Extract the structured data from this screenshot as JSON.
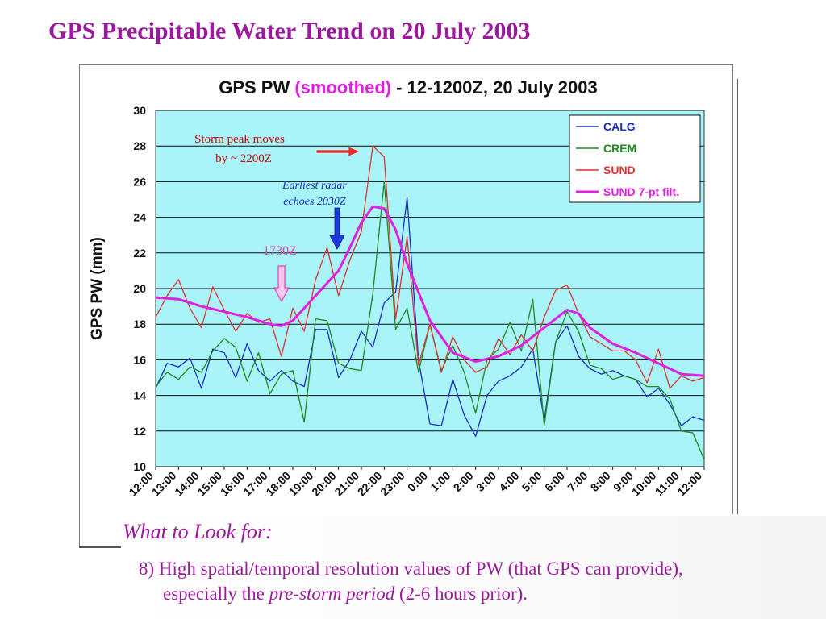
{
  "slide": {
    "title": "GPS Precipitable Water Trend on 20 July 2003",
    "look_for_label": "What to Look for:",
    "point_line1": "8) High spatial/temporal resolution values of PW (that GPS can provide),",
    "point_line2_pre": "especially the ",
    "point_line2_em": "pre-storm period",
    "point_line2_post": " (2-6 hours prior)."
  },
  "colors": {
    "title": "#9b1a9b",
    "plot_bg": "#a8f4f8",
    "CALG": "#1a2fc0",
    "CREM": "#1f8a1f",
    "SUND": "#e03030",
    "SUND_filt": "#e020e0",
    "storm_arrow": "#e03030",
    "radar_arrow": "#1a3ae0",
    "arrow_1730": "#e040c0"
  },
  "chart_data": {
    "type": "line",
    "title_parts": [
      "GPS PW ",
      "(smoothed)",
      " - 12-1200Z, 20 July 2003"
    ],
    "ylabel": "GPS PW (mm)",
    "xlabel": "",
    "ylim": [
      10,
      30
    ],
    "yticks": [
      10,
      12,
      14,
      16,
      18,
      20,
      22,
      24,
      26,
      28,
      30
    ],
    "xtick_labels": [
      "12:00",
      "13:00",
      "14:00",
      "15:00",
      "16:00",
      "17:00",
      "18:00",
      "19:00",
      "20:00",
      "21:00",
      "22:00",
      "23:00",
      "0:00",
      "1:00",
      "2:00",
      "3:00",
      "4:00",
      "5:00",
      "6:00",
      "7:00",
      "8:00",
      "9:00",
      "10:00",
      "11:00",
      "12:00"
    ],
    "x_range": [
      0,
      24
    ],
    "grid": "horizontal",
    "legend_position": "top-right",
    "series": [
      {
        "name": "CALG",
        "color_key": "CALG",
        "width": 1.3,
        "points": [
          [
            0,
            14.4
          ],
          [
            0.5,
            15.8
          ],
          [
            1,
            15.6
          ],
          [
            1.5,
            16.1
          ],
          [
            2,
            14.4
          ],
          [
            2.5,
            16.6
          ],
          [
            3,
            16.4
          ],
          [
            3.5,
            15.0
          ],
          [
            4,
            16.9
          ],
          [
            4.5,
            15.4
          ],
          [
            5,
            14.8
          ],
          [
            5.5,
            15.4
          ],
          [
            6,
            14.8
          ],
          [
            6.5,
            14.5
          ],
          [
            7,
            17.7
          ],
          [
            7.5,
            17.7
          ],
          [
            8,
            15.0
          ],
          [
            8.5,
            16.0
          ],
          [
            9,
            17.6
          ],
          [
            9.5,
            16.7
          ],
          [
            10,
            19.2
          ],
          [
            10.5,
            19.8
          ],
          [
            11,
            25.1
          ],
          [
            11.5,
            16.0
          ],
          [
            12,
            12.4
          ],
          [
            12.5,
            12.3
          ],
          [
            13,
            14.9
          ],
          [
            13.5,
            12.9
          ],
          [
            14,
            11.7
          ],
          [
            14.5,
            14.0
          ],
          [
            15,
            14.8
          ],
          [
            15.5,
            15.1
          ],
          [
            16,
            15.6
          ],
          [
            16.5,
            16.6
          ],
          [
            17,
            12.6
          ],
          [
            17.5,
            17.0
          ],
          [
            18,
            17.9
          ],
          [
            18.5,
            16.2
          ],
          [
            19,
            15.5
          ],
          [
            19.5,
            15.2
          ],
          [
            20,
            15.4
          ],
          [
            20.5,
            15.1
          ],
          [
            21,
            14.9
          ],
          [
            21.5,
            13.9
          ],
          [
            22,
            14.4
          ],
          [
            22.5,
            13.5
          ],
          [
            23,
            12.3
          ],
          [
            23.5,
            12.8
          ],
          [
            24,
            12.6
          ]
        ]
      },
      {
        "name": "CREM",
        "color_key": "CREM",
        "width": 1.3,
        "points": [
          [
            0,
            14.5
          ],
          [
            0.5,
            15.3
          ],
          [
            1,
            14.9
          ],
          [
            1.5,
            15.6
          ],
          [
            2,
            15.3
          ],
          [
            2.5,
            16.5
          ],
          [
            3,
            17.2
          ],
          [
            3.5,
            16.7
          ],
          [
            4,
            14.8
          ],
          [
            4.5,
            16.4
          ],
          [
            5,
            14.1
          ],
          [
            5.5,
            15.2
          ],
          [
            6,
            15.4
          ],
          [
            6.5,
            12.5
          ],
          [
            7,
            18.3
          ],
          [
            7.5,
            18.2
          ],
          [
            8,
            15.8
          ],
          [
            8.5,
            15.5
          ],
          [
            9,
            15.4
          ],
          [
            9.5,
            19.7
          ],
          [
            10,
            26.0
          ],
          [
            10.5,
            17.7
          ],
          [
            11,
            18.9
          ],
          [
            11.5,
            15.3
          ],
          [
            12,
            18.0
          ],
          [
            12.5,
            15.4
          ],
          [
            13,
            16.8
          ],
          [
            13.5,
            15.3
          ],
          [
            14,
            13.0
          ],
          [
            14.5,
            16.0
          ],
          [
            15,
            16.6
          ],
          [
            15.5,
            18.1
          ],
          [
            16,
            16.5
          ],
          [
            16.5,
            19.4
          ],
          [
            17,
            12.3
          ],
          [
            17.5,
            17.0
          ],
          [
            18,
            18.7
          ],
          [
            18.5,
            17.6
          ],
          [
            19,
            15.7
          ],
          [
            19.5,
            15.5
          ],
          [
            20,
            14.9
          ],
          [
            20.5,
            15.1
          ],
          [
            21,
            14.9
          ],
          [
            21.5,
            14.5
          ],
          [
            22,
            14.5
          ],
          [
            22.5,
            13.8
          ],
          [
            23,
            12.0
          ],
          [
            23.5,
            11.9
          ],
          [
            24,
            10.4
          ]
        ]
      },
      {
        "name": "SUND",
        "color_key": "SUND",
        "width": 1.3,
        "points": [
          [
            0,
            18.4
          ],
          [
            0.5,
            19.6
          ],
          [
            1,
            20.5
          ],
          [
            1.5,
            18.9
          ],
          [
            2,
            17.8
          ],
          [
            2.5,
            20.1
          ],
          [
            3,
            18.8
          ],
          [
            3.5,
            17.6
          ],
          [
            4,
            18.6
          ],
          [
            4.5,
            18.1
          ],
          [
            5,
            18.3
          ],
          [
            5.5,
            16.2
          ],
          [
            6,
            18.9
          ],
          [
            6.5,
            17.6
          ],
          [
            7,
            20.5
          ],
          [
            7.5,
            22.3
          ],
          [
            8,
            19.6
          ],
          [
            8.5,
            21.6
          ],
          [
            9,
            23.2
          ],
          [
            9.5,
            28.0
          ],
          [
            10,
            27.4
          ],
          [
            10.5,
            18.3
          ],
          [
            11,
            22.9
          ],
          [
            11.5,
            15.7
          ],
          [
            12,
            18.0
          ],
          [
            12.5,
            15.3
          ],
          [
            13,
            17.3
          ],
          [
            13.5,
            16.0
          ],
          [
            14,
            15.3
          ],
          [
            14.5,
            15.6
          ],
          [
            15,
            17.2
          ],
          [
            15.5,
            16.3
          ],
          [
            16,
            17.4
          ],
          [
            16.5,
            16.5
          ],
          [
            17,
            18.4
          ],
          [
            17.5,
            19.9
          ],
          [
            18,
            20.2
          ],
          [
            18.5,
            18.6
          ],
          [
            19,
            17.3
          ],
          [
            19.5,
            16.9
          ],
          [
            20,
            16.5
          ],
          [
            20.5,
            16.5
          ],
          [
            21,
            16.0
          ],
          [
            21.5,
            14.7
          ],
          [
            22,
            16.6
          ],
          [
            22.5,
            14.4
          ],
          [
            23,
            15.1
          ],
          [
            23.5,
            14.8
          ],
          [
            24,
            15.0
          ]
        ]
      },
      {
        "name": "SUND 7-pt filt.",
        "color_key": "SUND_filt",
        "width": 3,
        "points": [
          [
            0,
            19.5
          ],
          [
            1,
            19.4
          ],
          [
            2,
            19.0
          ],
          [
            3,
            18.7
          ],
          [
            4,
            18.4
          ],
          [
            5,
            18.0
          ],
          [
            5.5,
            17.9
          ],
          [
            6,
            18.2
          ],
          [
            7,
            19.6
          ],
          [
            8,
            21.0
          ],
          [
            8.5,
            22.3
          ],
          [
            9,
            23.7
          ],
          [
            9.5,
            24.6
          ],
          [
            10,
            24.5
          ],
          [
            10.5,
            23.3
          ],
          [
            11,
            21.4
          ],
          [
            11.5,
            19.8
          ],
          [
            12,
            18.2
          ],
          [
            13,
            16.4
          ],
          [
            14,
            15.9
          ],
          [
            15,
            16.2
          ],
          [
            16,
            16.8
          ],
          [
            17,
            17.8
          ],
          [
            18,
            18.8
          ],
          [
            18.5,
            18.6
          ],
          [
            19,
            17.8
          ],
          [
            20,
            16.9
          ],
          [
            21,
            16.4
          ],
          [
            22,
            15.8
          ],
          [
            23,
            15.2
          ],
          [
            24,
            15.1
          ]
        ]
      }
    ],
    "annotations": {
      "storm_peak_line1": "Storm peak moves",
      "storm_peak_line2": "by  ~ 2200Z",
      "radar_line1": "Earliest radar",
      "radar_line2": "echoes 2030Z",
      "time_1730": "1730Z"
    }
  }
}
